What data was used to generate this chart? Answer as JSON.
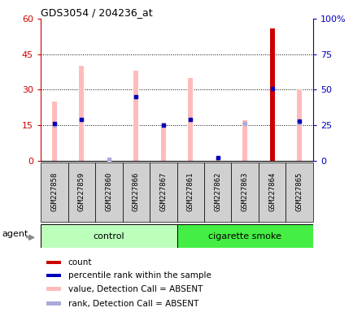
{
  "title": "GDS3054 / 204236_at",
  "samples": [
    "GSM227858",
    "GSM227859",
    "GSM227860",
    "GSM227866",
    "GSM227867",
    "GSM227861",
    "GSM227862",
    "GSM227863",
    "GSM227864",
    "GSM227865"
  ],
  "groups": [
    "control",
    "control",
    "control",
    "control",
    "control",
    "cigarette smoke",
    "cigarette smoke",
    "cigarette smoke",
    "cigarette smoke",
    "cigarette smoke"
  ],
  "pink_values": [
    25,
    40,
    0,
    38,
    16,
    35,
    1,
    17,
    0,
    30
  ],
  "blue_rank": [
    26,
    29,
    0,
    45,
    25,
    29,
    2,
    0,
    51,
    28
  ],
  "red_count": [
    0,
    0,
    0,
    0,
    0,
    0,
    0,
    0,
    56,
    0
  ],
  "blue_sq_rank": [
    25,
    29,
    1,
    0,
    25,
    29,
    2,
    26,
    0,
    27
  ],
  "left_ylim": [
    0,
    60
  ],
  "right_ylim": [
    0,
    100
  ],
  "left_yticks": [
    0,
    15,
    30,
    45,
    60
  ],
  "right_yticks": [
    0,
    25,
    50,
    75,
    100
  ],
  "right_yticklabels": [
    "0",
    "25",
    "50",
    "75",
    "100%"
  ],
  "group_labels": [
    "control",
    "cigarette smoke"
  ],
  "control_color": "#bbffbb",
  "smoke_color": "#44ee44",
  "legend_items": [
    {
      "color": "#cc0000",
      "label": "count"
    },
    {
      "color": "#0000bb",
      "label": "percentile rank within the sample"
    },
    {
      "color": "#ffbbbb",
      "label": "value, Detection Call = ABSENT"
    },
    {
      "color": "#aaaadd",
      "label": "rank, Detection Call = ABSENT"
    }
  ],
  "bar_width": 0.18,
  "agent_label": "agent",
  "axis_color_left": "#cc0000",
  "axis_color_right": "#0000bb",
  "grid_ticks": [
    15,
    30,
    45
  ]
}
